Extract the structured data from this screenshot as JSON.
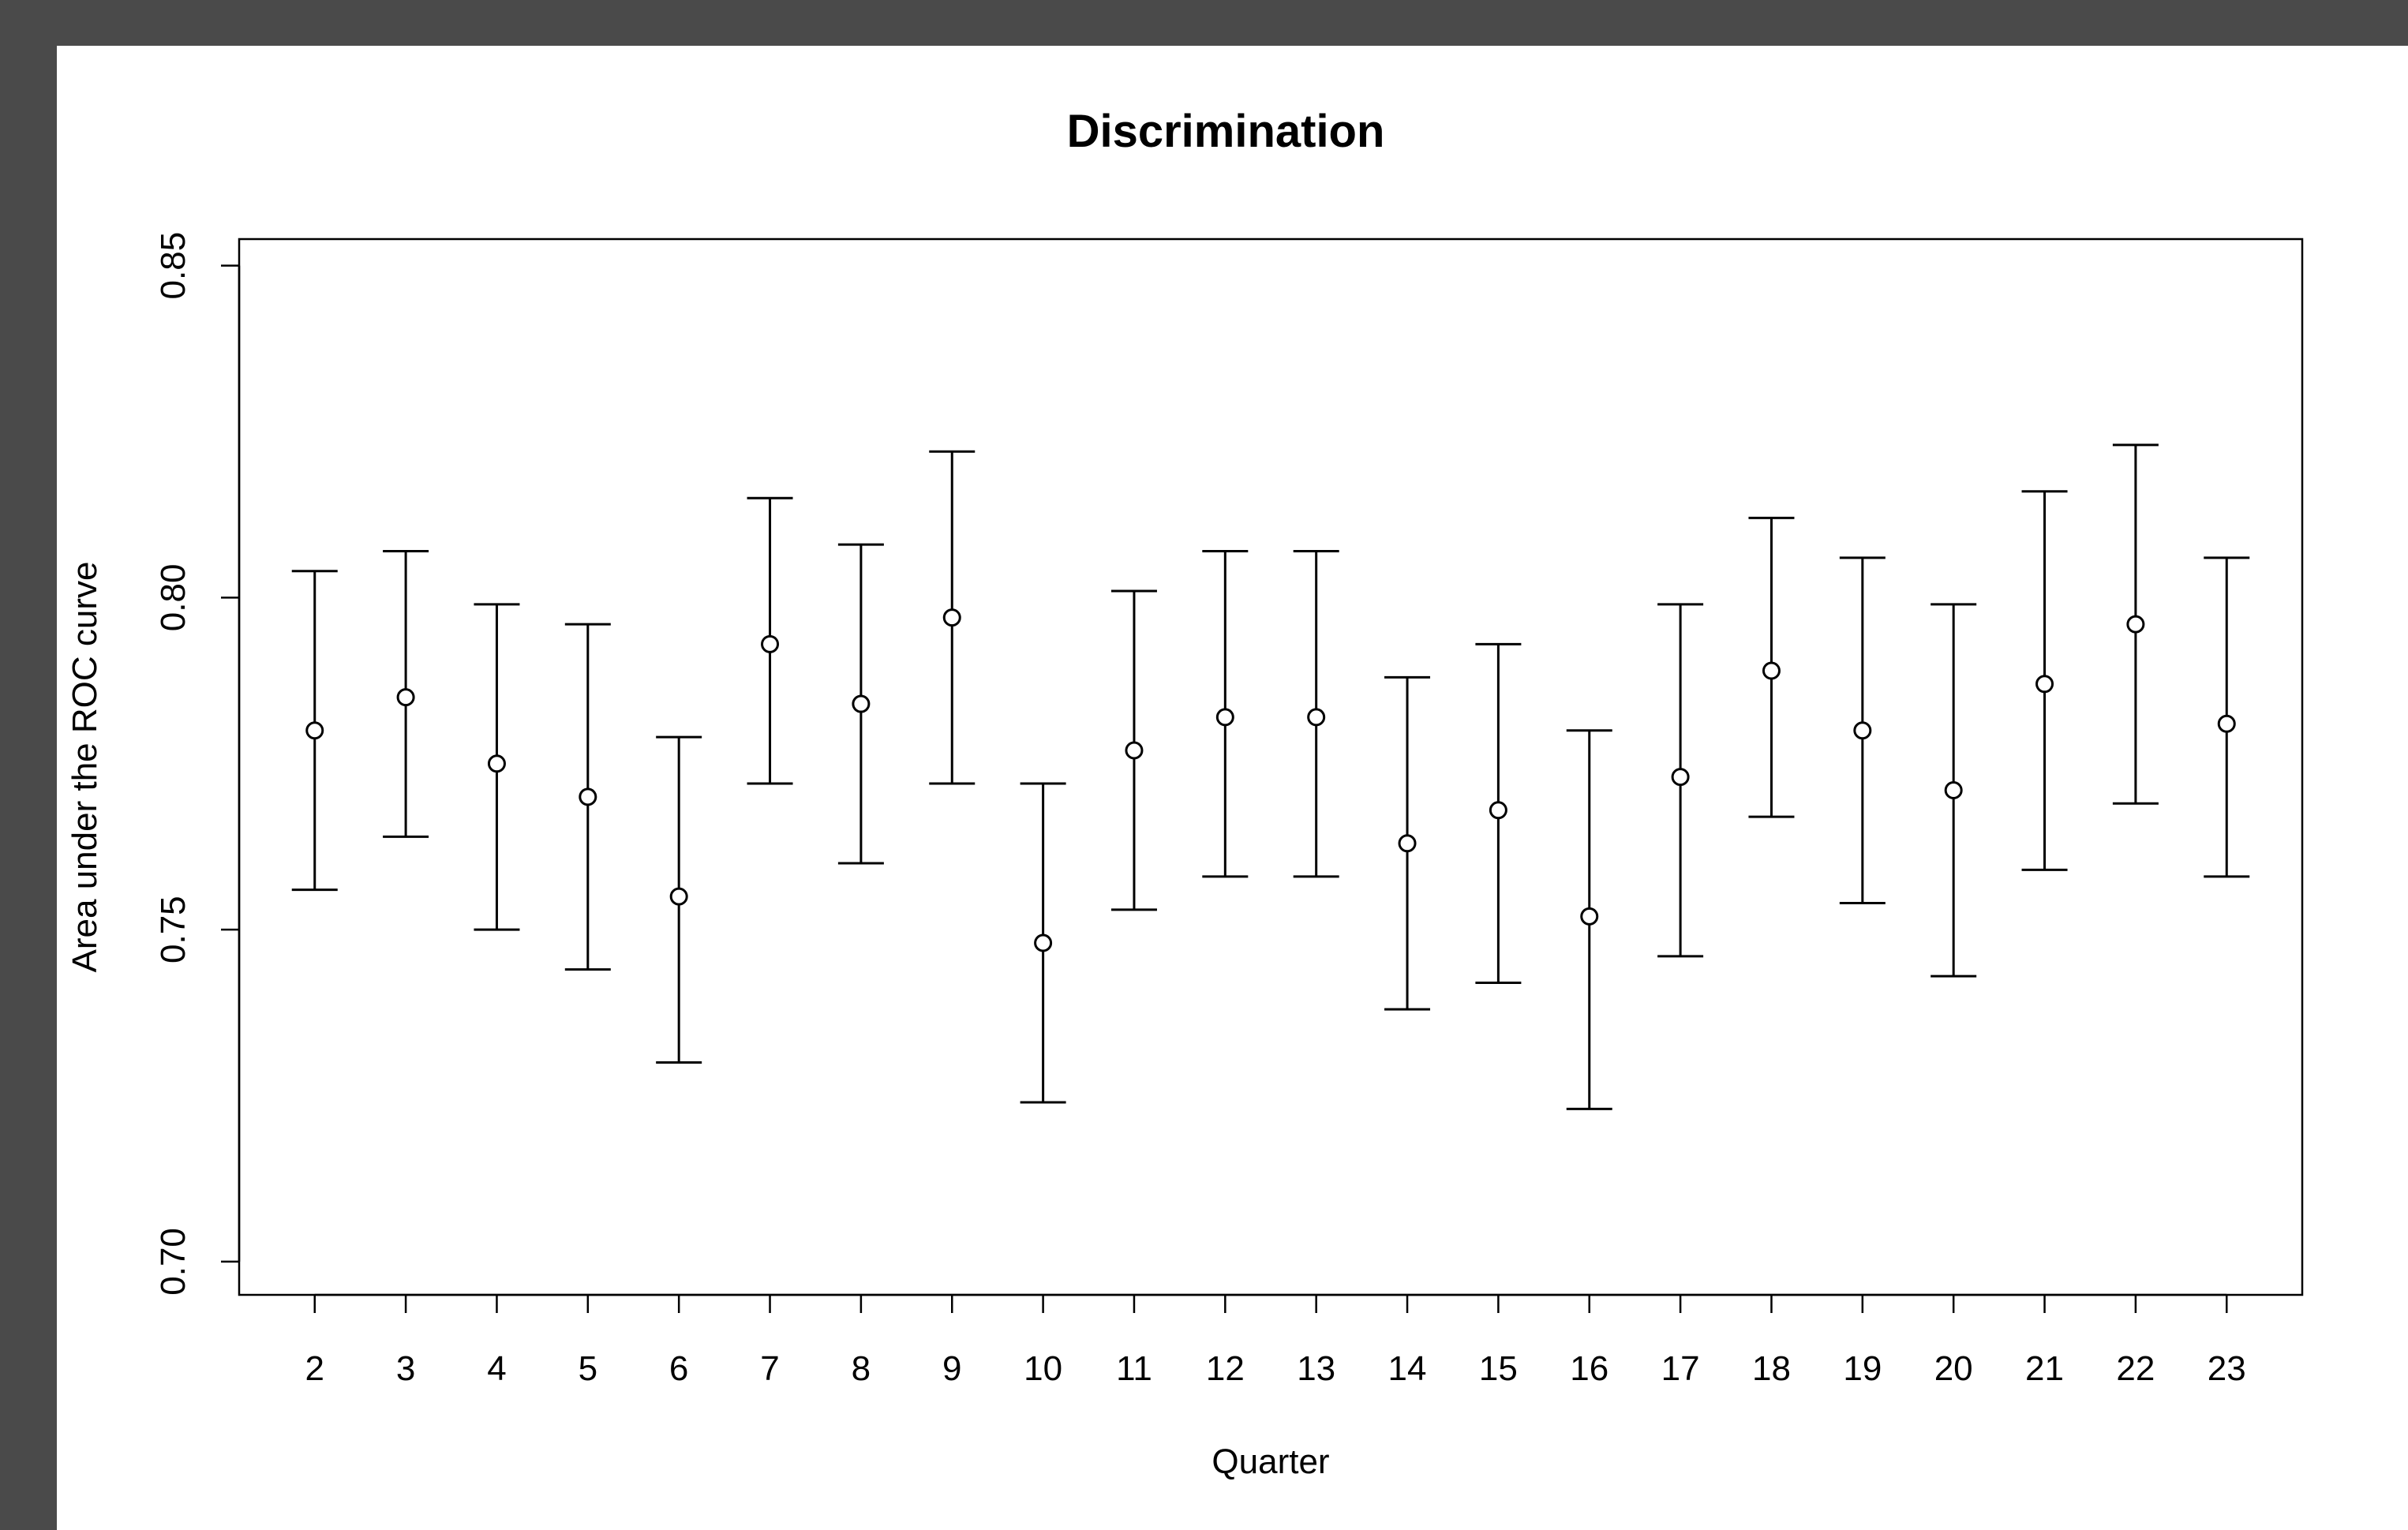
{
  "chart_data": {
    "type": "scatter",
    "title": "Discrimination",
    "xlabel": "Quarter",
    "ylabel": "Area under the ROC curve",
    "ylim": [
      0.695,
      0.854
    ],
    "xlim": [
      1.17,
      23.83
    ],
    "grid": false,
    "y_ticks": [
      0.7,
      0.75,
      0.8,
      0.85
    ],
    "y_tick_labels": [
      "0.70",
      "0.75",
      "0.80",
      "0.85"
    ],
    "x": [
      2,
      3,
      4,
      5,
      6,
      7,
      8,
      9,
      10,
      11,
      12,
      13,
      14,
      15,
      16,
      17,
      18,
      19,
      20,
      21,
      22,
      23
    ],
    "x_tick_labels": [
      "2",
      "3",
      "4",
      "5",
      "6",
      "7",
      "8",
      "9",
      "10",
      "11",
      "12",
      "13",
      "14",
      "15",
      "16",
      "17",
      "18",
      "19",
      "20",
      "21",
      "22",
      "23"
    ],
    "series": [
      {
        "values": [
          0.78,
          0.785,
          0.775,
          0.77,
          0.755,
          0.793,
          0.784,
          0.797,
          0.748,
          0.777,
          0.782,
          0.782,
          0.763,
          0.768,
          0.752,
          0.773,
          0.789,
          0.78,
          0.771,
          0.787,
          0.796,
          0.781
        ],
        "lower": [
          0.756,
          0.764,
          0.75,
          0.744,
          0.73,
          0.772,
          0.76,
          0.772,
          0.724,
          0.753,
          0.758,
          0.758,
          0.738,
          0.742,
          0.723,
          0.746,
          0.767,
          0.754,
          0.743,
          0.759,
          0.769,
          0.758
        ],
        "upper": [
          0.804,
          0.807,
          0.799,
          0.796,
          0.779,
          0.815,
          0.808,
          0.822,
          0.772,
          0.801,
          0.807,
          0.807,
          0.788,
          0.793,
          0.78,
          0.799,
          0.812,
          0.806,
          0.799,
          0.816,
          0.823,
          0.806
        ]
      }
    ]
  },
  "colors": {
    "frame": "#4a4a4a",
    "panel": "#ffffff",
    "ink": "#000000"
  }
}
